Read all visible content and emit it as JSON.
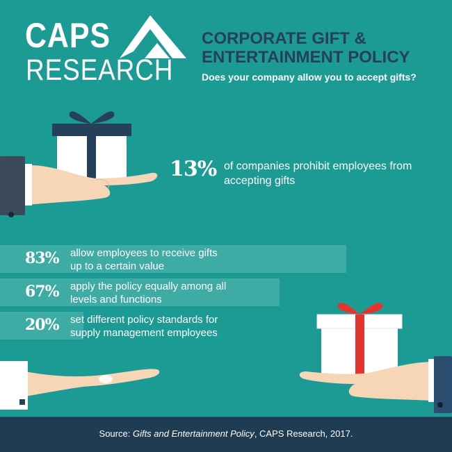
{
  "logo": {
    "line1": "CAPS",
    "line2": "RESEARCH"
  },
  "header": {
    "title_line1": "CORPORATE GIFT &",
    "title_line2": "ENTERTAINMENT POLICY",
    "subtitle": "Does your company allow you to accept gifts?"
  },
  "colors": {
    "background": "#1b9b94",
    "title": "#27405a",
    "footer": "#1f3c52",
    "bar": "rgba(255,255,255,0.16)",
    "gift_ribbon_left": "#27405a",
    "gift_ribbon_right": "#e3352d"
  },
  "icons": [
    "caps-logo-mark-icon",
    "gift-box-icon",
    "hand-icon"
  ],
  "chart_data": {
    "type": "bar",
    "title": "Does your company allow you to accept gifts?",
    "headline": {
      "value": "13%",
      "label": "of companies prohibit employees from accepting gifts"
    },
    "categories": [
      "allow employees to receive gifts up to a certain value",
      "apply the policy equally among all levels and functions",
      "set different policy standards for supply management employees"
    ],
    "values": [
      83,
      67,
      20
    ],
    "value_labels": [
      "83%",
      "67%",
      "20%"
    ],
    "label_lines": [
      [
        "allow employees to receive gifts",
        "up to a certain value"
      ],
      [
        "apply the policy equally among all",
        "levels and functions"
      ],
      [
        "set different policy standards for",
        "supply management employees"
      ]
    ],
    "xlim": [
      0,
      100
    ]
  },
  "footer": {
    "source_prefix": "Source: ",
    "source_title": "Gifts and Entertainment Policy",
    "source_suffix": ", CAPS Research, 2017."
  }
}
